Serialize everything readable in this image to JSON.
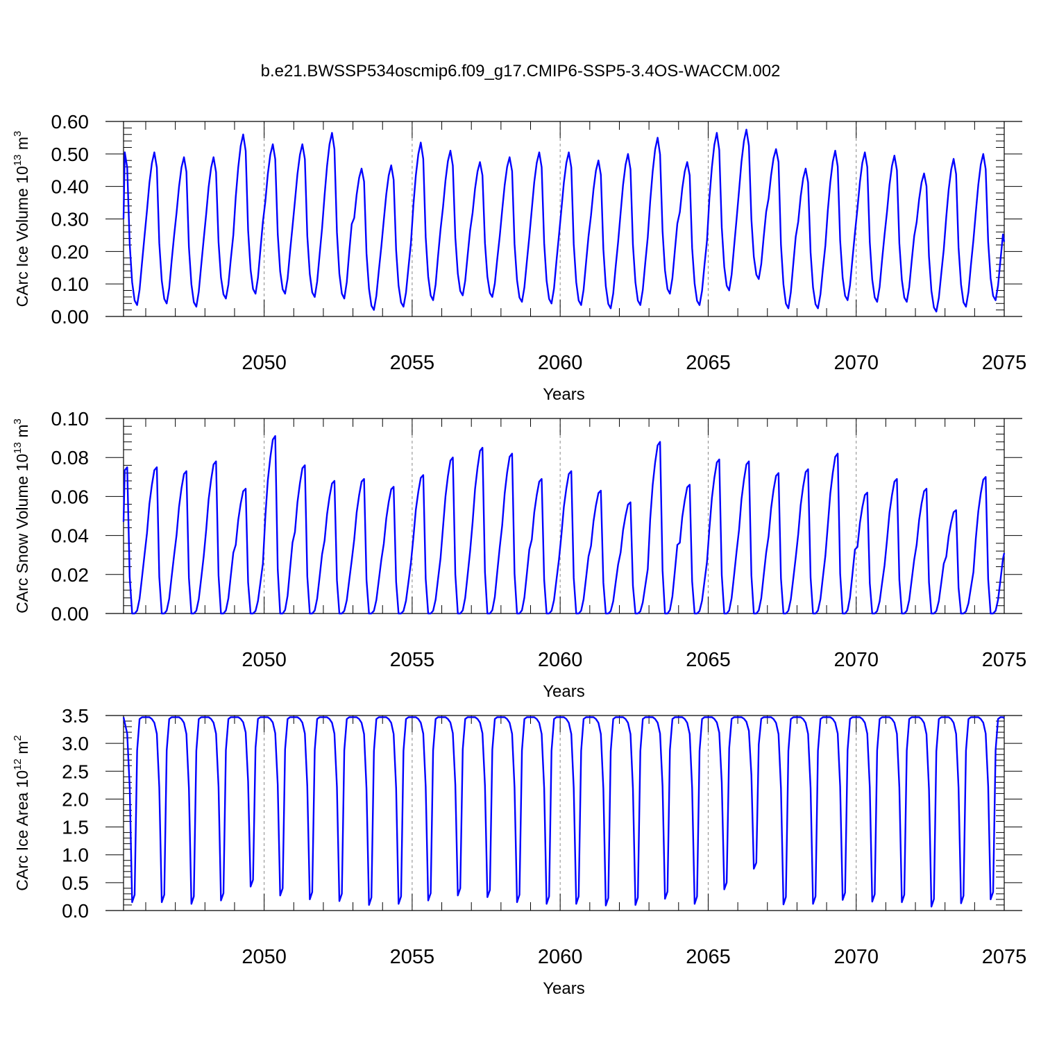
{
  "figure_title": "b.e21.BWSSP534oscmip6.f09_g17.CMIP6-SSP5-3.4OS-WACCM.002",
  "chart_data": [
    {
      "id": "ice-volume",
      "type": "line",
      "ylabel": "CArc Ice Volume 10",
      "ylabel_exp": "13",
      "ylabel_unit": " m",
      "ylabel_unit_exp": "3",
      "xlabel": "Years",
      "xlim": [
        2045.25,
        2075.0
      ],
      "ylim": [
        0,
        0.6
      ],
      "yticks": [
        0,
        0.1,
        0.2,
        0.3,
        0.4,
        0.5,
        0.6
      ],
      "ytick_labels": [
        "0.00",
        "0.10",
        "0.20",
        "0.30",
        "0.40",
        "0.50",
        "0.60"
      ],
      "xticks": [
        2050,
        2055,
        2060,
        2065,
        2070,
        2075
      ],
      "xtick_labels": [
        "2050",
        "2055",
        "2060",
        "2065",
        "2070",
        "2075"
      ],
      "line_color": "#0000ff",
      "seasonal_peak_month": 4,
      "seasonal_trough_month": 9,
      "peaks": [
        0.505,
        0.505,
        0.49,
        0.49,
        0.56,
        0.53,
        0.53,
        0.565,
        0.455,
        0.465,
        0.535,
        0.51,
        0.475,
        0.49,
        0.505,
        0.505,
        0.48,
        0.5,
        0.55,
        0.475,
        0.565,
        0.575,
        0.515,
        0.455,
        0.51,
        0.505,
        0.495,
        0.44,
        0.485,
        0.5
      ],
      "troughs": [
        0.035,
        0.04,
        0.03,
        0.055,
        0.07,
        0.07,
        0.06,
        0.055,
        0.02,
        0.03,
        0.05,
        0.065,
        0.06,
        0.045,
        0.04,
        0.035,
        0.025,
        0.035,
        0.07,
        0.035,
        0.08,
        0.115,
        0.025,
        0.025,
        0.05,
        0.045,
        0.045,
        0.015,
        0.03,
        0.05
      ],
      "series": [
        {
          "name": "CArc Ice Volume",
          "start_value": 0.3,
          "end_value": 0.23
        }
      ]
    },
    {
      "id": "snow-volume",
      "type": "line",
      "ylabel": "CArc Snow Volume 10",
      "ylabel_exp": "13",
      "ylabel_unit": " m",
      "ylabel_unit_exp": "3",
      "xlabel": "Years",
      "xlim": [
        2045.25,
        2075.0
      ],
      "ylim": [
        0,
        0.1
      ],
      "yticks": [
        0,
        0.02,
        0.04,
        0.06,
        0.08,
        0.1
      ],
      "ytick_labels": [
        "0.00",
        "0.02",
        "0.04",
        "0.06",
        "0.08",
        "0.10"
      ],
      "xticks": [
        2050,
        2055,
        2060,
        2065,
        2070,
        2075
      ],
      "xtick_labels": [
        "2050",
        "2055",
        "2060",
        "2065",
        "2070",
        "2075"
      ],
      "line_color": "#0000ff",
      "seasonal_peak_month": 4,
      "seasonal_trough_month": 7,
      "peaks": [
        0.075,
        0.075,
        0.073,
        0.078,
        0.064,
        0.091,
        0.076,
        0.068,
        0.069,
        0.065,
        0.071,
        0.08,
        0.085,
        0.082,
        0.069,
        0.073,
        0.063,
        0.057,
        0.088,
        0.066,
        0.079,
        0.078,
        0.072,
        0.074,
        0.082,
        0.062,
        0.069,
        0.064,
        0.053,
        0.07
      ],
      "troughs": [
        0.0,
        0.0,
        0.0,
        0.0,
        0.0,
        0.0,
        0.0,
        0.0,
        0.0,
        0.0,
        0.0,
        0.0,
        0.0,
        0.0,
        0.0,
        0.0,
        0.0,
        0.0,
        0.0,
        0.0,
        0.0,
        0.0,
        0.0,
        0.0,
        0.0,
        0.0,
        0.0,
        0.0,
        0.0,
        0.0
      ],
      "series": [
        {
          "name": "CArc Snow Volume",
          "start_value": 0.047,
          "end_value": 0.031
        }
      ]
    },
    {
      "id": "ice-area",
      "type": "line",
      "ylabel": "CArc Ice Area 10",
      "ylabel_exp": "12",
      "ylabel_unit": " m",
      "ylabel_unit_exp": "2",
      "xlabel": "Years",
      "xlim": [
        2045.25,
        2075.0
      ],
      "ylim": [
        0,
        3.5
      ],
      "yticks": [
        0,
        0.5,
        1.0,
        1.5,
        2.0,
        2.5,
        3.0,
        3.5
      ],
      "ytick_labels": [
        "0.0",
        "0.5",
        "1.0",
        "1.5",
        "2.0",
        "2.5",
        "3.0",
        "3.5"
      ],
      "xticks": [
        2050,
        2055,
        2060,
        2065,
        2070,
        2075
      ],
      "xtick_labels": [
        "2050",
        "2055",
        "2060",
        "2065",
        "2070",
        "2075"
      ],
      "line_color": "#0000ff",
      "plateau": 3.47,
      "troughs": [
        0.15,
        0.15,
        0.12,
        0.18,
        0.43,
        0.27,
        0.2,
        0.17,
        0.1,
        0.12,
        0.18,
        0.27,
        0.24,
        0.15,
        0.12,
        0.12,
        0.09,
        0.1,
        0.21,
        0.12,
        0.38,
        0.75,
        0.11,
        0.12,
        0.19,
        0.16,
        0.15,
        0.07,
        0.13,
        0.2
      ],
      "series": [
        {
          "name": "CArc Ice Area",
          "start_value": 3.47,
          "end_value": 3.45
        }
      ]
    }
  ]
}
